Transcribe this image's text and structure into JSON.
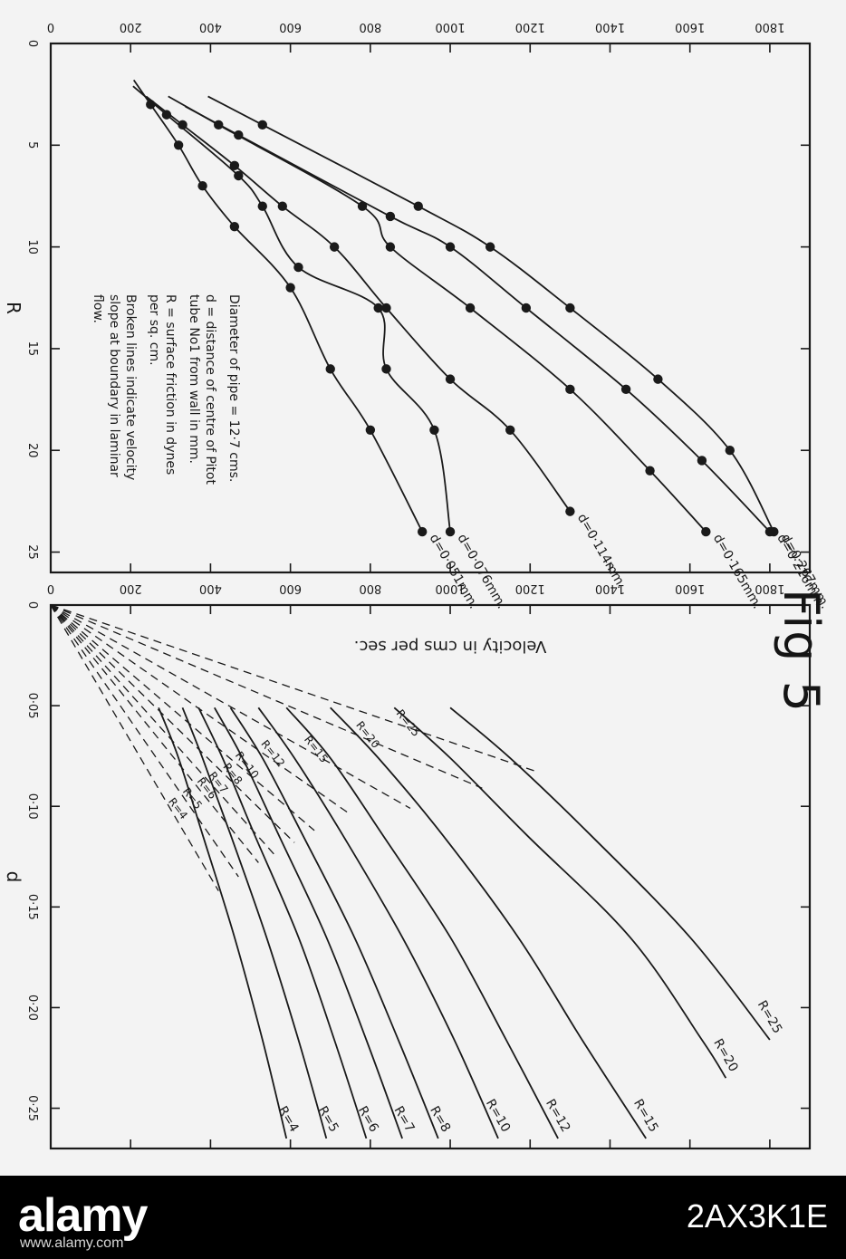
{
  "figure_label": "Fig 5",
  "chart_data": [
    {
      "type": "scatter",
      "xlabel": "R",
      "ylabel": "",
      "xlim": [
        0,
        26
      ],
      "ylim": [
        0,
        1900
      ],
      "x_ticks": [
        "0",
        "5",
        "10",
        "15",
        "20",
        "25"
      ],
      "y_ticks": [
        "0",
        "200",
        "400",
        "600",
        "800",
        "1000",
        "1200",
        "1400",
        "1600",
        "1800"
      ],
      "series": [
        {
          "name": "d=0·267mm.",
          "x": [
            4,
            8,
            10,
            13,
            16.5,
            20,
            24
          ],
          "y": [
            530,
            920,
            1100,
            1300,
            1520,
            1700,
            1810
          ]
        },
        {
          "name": "d=0·216mm.",
          "x": [
            4.5,
            8.5,
            10,
            13,
            17,
            20.5,
            24
          ],
          "y": [
            470,
            850,
            1000,
            1190,
            1440,
            1630,
            1800
          ]
        },
        {
          "name": "d=0·165mm.",
          "x": [
            4,
            8,
            10,
            13,
            17,
            21,
            24
          ],
          "y": [
            420,
            780,
            850,
            1050,
            1300,
            1500,
            1640
          ]
        },
        {
          "name": "d=0·114mm.",
          "x": [
            4,
            6,
            8,
            10,
            13,
            16.5,
            19,
            23
          ],
          "y": [
            330,
            460,
            580,
            710,
            840,
            1000,
            1150,
            1300
          ]
        },
        {
          "name": "d=0·076mm.",
          "x": [
            3.5,
            6.5,
            8,
            11,
            13,
            16,
            19,
            24
          ],
          "y": [
            290,
            470,
            530,
            620,
            820,
            840,
            960,
            1000
          ]
        },
        {
          "name": "d=0·051mm.",
          "x": [
            3,
            5,
            7,
            9,
            12,
            16,
            19,
            24
          ],
          "y": [
            250,
            320,
            380,
            460,
            600,
            700,
            800,
            930
          ]
        }
      ],
      "annotations": [
        "Diameter of pipe = 12·7 cms.",
        "d = distance of centre of Pitot tube No1 from wall in mm.",
        "R = surface friction in dynes per sq. cm.",
        "Broken lines indicate velocity slope at boundary in laminar flow."
      ]
    },
    {
      "type": "line",
      "xlabel": "d",
      "ylabel": "Velocity in cms per sec.",
      "xlim": [
        0,
        0.27
      ],
      "ylim": [
        0,
        1900
      ],
      "x_ticks": [
        "0",
        "0·05",
        "0·10",
        "0·15",
        "0·20",
        "0·25"
      ],
      "y_ticks": [
        "0",
        "200",
        "400",
        "600",
        "800",
        "1000",
        "1200",
        "1400",
        "1600",
        "1800"
      ],
      "series": [
        {
          "name": "R=25",
          "x": [
            0.051,
            0.076,
            0.114,
            0.165,
            0.216
          ],
          "y": [
            1000,
            1150,
            1350,
            1600,
            1800
          ]
        },
        {
          "name": "R=20",
          "x": [
            0.051,
            0.076,
            0.114,
            0.165,
            0.216,
            0.235
          ],
          "y": [
            860,
            1000,
            1190,
            1450,
            1630,
            1690
          ]
        },
        {
          "name": "R=15",
          "x": [
            0.051,
            0.076,
            0.114,
            0.165,
            0.216,
            0.265
          ],
          "y": [
            700,
            820,
            980,
            1170,
            1330,
            1490
          ]
        },
        {
          "name": "R=12",
          "x": [
            0.051,
            0.076,
            0.114,
            0.165,
            0.216,
            0.265
          ],
          "y": [
            590,
            700,
            830,
            1000,
            1140,
            1270
          ]
        },
        {
          "name": "R=10",
          "x": [
            0.051,
            0.076,
            0.114,
            0.165,
            0.216,
            0.265
          ],
          "y": [
            520,
            610,
            730,
            880,
            1010,
            1120
          ]
        },
        {
          "name": "R=8",
          "x": [
            0.051,
            0.076,
            0.114,
            0.165,
            0.216,
            0.265
          ],
          "y": [
            450,
            530,
            630,
            760,
            870,
            970
          ]
        },
        {
          "name": "R=7",
          "x": [
            0.051,
            0.076,
            0.114,
            0.165,
            0.216,
            0.265
          ],
          "y": [
            410,
            480,
            570,
            690,
            790,
            880
          ]
        },
        {
          "name": "R=6",
          "x": [
            0.051,
            0.076,
            0.114,
            0.165,
            0.216,
            0.265
          ],
          "y": [
            370,
            430,
            510,
            620,
            710,
            790
          ]
        },
        {
          "name": "R=5",
          "x": [
            0.051,
            0.076,
            0.114,
            0.165,
            0.216,
            0.265
          ],
          "y": [
            330,
            380,
            450,
            540,
            620,
            690
          ]
        },
        {
          "name": "R=4",
          "x": [
            0.051,
            0.076,
            0.114,
            0.165,
            0.216,
            0.265
          ],
          "y": [
            270,
            320,
            380,
            460,
            530,
            590
          ]
        }
      ],
      "laminar_lines": [
        {
          "name": "R=25",
          "x_end": 0.083,
          "y_end": 1220
        },
        {
          "name": "R=20",
          "x_end": 0.091,
          "y_end": 1080
        },
        {
          "name": "R=15",
          "x_end": 0.101,
          "y_end": 900
        },
        {
          "name": "R=12",
          "x_end": 0.104,
          "y_end": 750
        },
        {
          "name": "R=10",
          "x_end": 0.112,
          "y_end": 660
        },
        {
          "name": "R=8",
          "x_end": 0.118,
          "y_end": 610
        },
        {
          "name": "R=7",
          "x_end": 0.124,
          "y_end": 560
        },
        {
          "name": "R=6",
          "x_end": 0.128,
          "y_end": 520
        },
        {
          "name": "R=5",
          "x_end": 0.135,
          "y_end": 470
        },
        {
          "name": "R=4",
          "x_end": 0.142,
          "y_end": 420
        }
      ]
    }
  ],
  "footer": {
    "logo": "alamy",
    "image_code": "2AX3K1E",
    "caption": "www.alamy.com"
  }
}
